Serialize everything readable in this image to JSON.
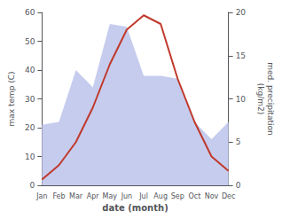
{
  "chart_data": {
    "type": "line",
    "categories": [
      "Jan",
      "Feb",
      "Mar",
      "Apr",
      "May",
      "Jun",
      "Jul",
      "Aug",
      "Sep",
      "Oct",
      "Nov",
      "Dec"
    ],
    "series": [
      {
        "type": "area",
        "color": "#c6ccee",
        "values": [
          21,
          22,
          40,
          34,
          56,
          55,
          38,
          38,
          37,
          22,
          16,
          22
        ]
      },
      {
        "type": "line",
        "color": "#c0392b",
        "values": [
          2,
          7,
          15,
          27,
          42,
          54,
          59,
          56,
          37,
          22,
          10,
          5
        ]
      }
    ],
    "xlabel": "date (month)",
    "ylabel": "max temp (C)",
    "y2label": "med. precipitation\n(kg/m2)",
    "ylim": [
      0,
      60
    ],
    "yticks": [
      0,
      10,
      20,
      30,
      40,
      50,
      60
    ],
    "y2lim": [
      0,
      20
    ],
    "y2ticks": [
      0,
      5,
      10,
      15,
      20
    ],
    "grid": false
  }
}
